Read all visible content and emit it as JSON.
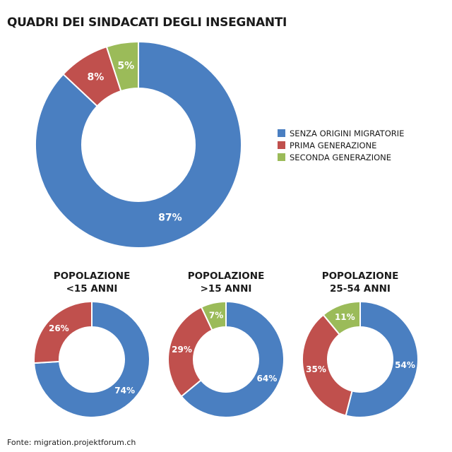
{
  "chart_data": {
    "type": "pie",
    "title": "QUADRI DEI SINDACATI DEGLI INSEGNANTI",
    "legend": {
      "placement": "right",
      "entries": [
        "SENZA ORIGINI MIGRATORIE",
        "PRIMA GENERAZIONE",
        "SECONDA GENERAZIONE"
      ]
    },
    "colors": [
      "#4a7fc1",
      "#c0504d",
      "#9bbb59"
    ],
    "charts": [
      {
        "title": "QUADRI DEI SINDACATI DEGLI INSEGNANTI",
        "values": [
          87,
          8,
          5
        ],
        "labels": [
          "87%",
          "8%",
          "5%"
        ]
      },
      {
        "title_line1": "POPOLAZIONE",
        "title_line2": "<15 ANNI",
        "values": [
          74,
          26,
          0
        ],
        "labels": [
          "74%",
          "26%",
          ""
        ]
      },
      {
        "title_line1": "POPOLAZIONE",
        "title_line2": ">15 ANNI",
        "values": [
          64,
          29,
          7
        ],
        "labels": [
          "64%",
          "29%",
          "7%"
        ]
      },
      {
        "title_line1": "POPOLAZIONE",
        "title_line2": "25-54 ANNI",
        "values": [
          54,
          35,
          11
        ],
        "labels": [
          "54%",
          "35%",
          "11%"
        ]
      }
    ]
  },
  "source": "Fonte: migration.projektforum.ch"
}
